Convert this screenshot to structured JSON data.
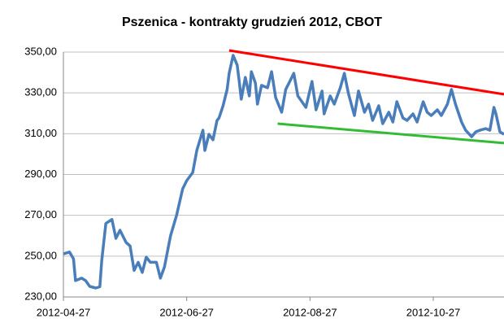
{
  "chart_data": {
    "type": "line",
    "title": "Pszenica - kontrakty grudzień 2012, CBOT",
    "xlim": [
      "2012-04-27",
      "2012-12-01"
    ],
    "xticks": [
      "2012-04-27",
      "2012-06-27",
      "2012-08-27",
      "2012-10-27"
    ],
    "ylim": [
      230,
      350
    ],
    "yticks": [
      {
        "value": 230,
        "label": "230,00"
      },
      {
        "value": 250,
        "label": "250,00"
      },
      {
        "value": 270,
        "label": "270,00"
      },
      {
        "value": 290,
        "label": "290,00"
      },
      {
        "value": 310,
        "label": "310,00"
      },
      {
        "value": 330,
        "label": "330,00"
      },
      {
        "value": 350,
        "label": "350,00"
      }
    ],
    "grid": true,
    "series": [
      {
        "color": "#4a7ebb",
        "x": [
          "2012-04-27",
          "2012-04-30",
          "2012-05-02",
          "2012-05-03",
          "2012-05-06",
          "2012-05-08",
          "2012-05-10",
          "2012-05-13",
          "2012-05-15",
          "2012-05-16",
          "2012-05-18",
          "2012-05-21",
          "2012-05-23",
          "2012-05-25",
          "2012-05-28",
          "2012-05-30",
          "2012-06-01",
          "2012-06-03",
          "2012-06-05",
          "2012-06-07",
          "2012-06-09",
          "2012-06-12",
          "2012-06-14",
          "2012-06-16",
          "2012-06-19",
          "2012-06-22",
          "2012-06-25",
          "2012-06-27",
          "2012-06-30",
          "2012-07-02",
          "2012-07-05",
          "2012-07-06",
          "2012-07-08",
          "2012-07-10",
          "2012-07-12",
          "2012-07-13",
          "2012-07-15",
          "2012-07-17",
          "2012-07-18",
          "2012-07-20",
          "2012-07-22",
          "2012-07-23",
          "2012-07-24",
          "2012-07-26",
          "2012-07-28",
          "2012-07-29",
          "2012-07-31",
          "2012-08-01",
          "2012-08-03",
          "2012-08-06",
          "2012-08-08",
          "2012-08-10",
          "2012-08-13",
          "2012-08-15",
          "2012-08-17",
          "2012-08-19",
          "2012-08-21",
          "2012-08-23",
          "2012-08-25",
          "2012-08-28",
          "2012-08-30",
          "2012-09-02",
          "2012-09-03",
          "2012-09-06",
          "2012-09-08",
          "2012-09-11",
          "2012-09-13",
          "2012-09-15",
          "2012-09-18",
          "2012-09-20",
          "2012-09-23",
          "2012-09-25",
          "2012-09-27",
          "2012-09-30",
          "2012-10-02",
          "2012-10-05",
          "2012-10-07",
          "2012-10-09",
          "2012-10-12",
          "2012-10-14",
          "2012-10-17",
          "2012-10-19",
          "2012-10-22",
          "2012-10-24",
          "2012-10-26",
          "2012-10-29",
          "2012-10-31",
          "2012-11-03",
          "2012-11-05",
          "2012-11-07",
          "2012-11-10",
          "2012-11-12",
          "2012-11-15",
          "2012-11-17",
          "2012-11-19",
          "2012-11-22",
          "2012-11-24",
          "2012-11-26",
          "2012-11-27",
          "2012-11-29",
          "2012-12-01"
        ],
        "values": [
          251.1,
          252,
          248.7,
          238,
          239.2,
          238,
          235.2,
          234.4,
          235,
          248,
          266,
          268,
          258.7,
          262.7,
          256.7,
          255,
          243,
          247,
          242,
          249.5,
          247,
          247,
          239.2,
          244.7,
          260,
          270,
          283,
          287,
          291,
          301.8,
          311.7,
          301.8,
          309.7,
          307,
          316.5,
          317.7,
          323.7,
          331.7,
          339.6,
          348.4,
          343.6,
          335.6,
          326.9,
          337.6,
          328.5,
          340.4,
          334.8,
          324.5,
          333.7,
          332.5,
          340.4,
          327.7,
          320.5,
          331.7,
          335.6,
          339.6,
          328.5,
          325.7,
          322.9,
          335.6,
          321.7,
          330.9,
          319.7,
          328.5,
          324.5,
          332.5,
          339.6,
          329.7,
          318.9,
          330.9,
          320.5,
          324.5,
          316.5,
          323.7,
          314.9,
          320.5,
          315.7,
          325.7,
          317.7,
          316.5,
          319.7,
          315.7,
          325.7,
          320.5,
          318.9,
          321.7,
          318.9,
          324.5,
          331.7,
          324.5,
          315.7,
          311.7,
          308.5,
          310.9,
          311.7,
          312.5,
          311.7,
          322.9,
          319.7,
          310.9,
          309.7
        ]
      },
      {
        "color": "#ff0000",
        "x": [
          "2012-07-18",
          "2012-12-01"
        ],
        "values": [
          350.8,
          329.3
        ]
      },
      {
        "color": "#33bb33",
        "x": [
          "2012-08-11",
          "2012-12-01"
        ],
        "values": [
          314.9,
          305.4
        ]
      }
    ]
  }
}
